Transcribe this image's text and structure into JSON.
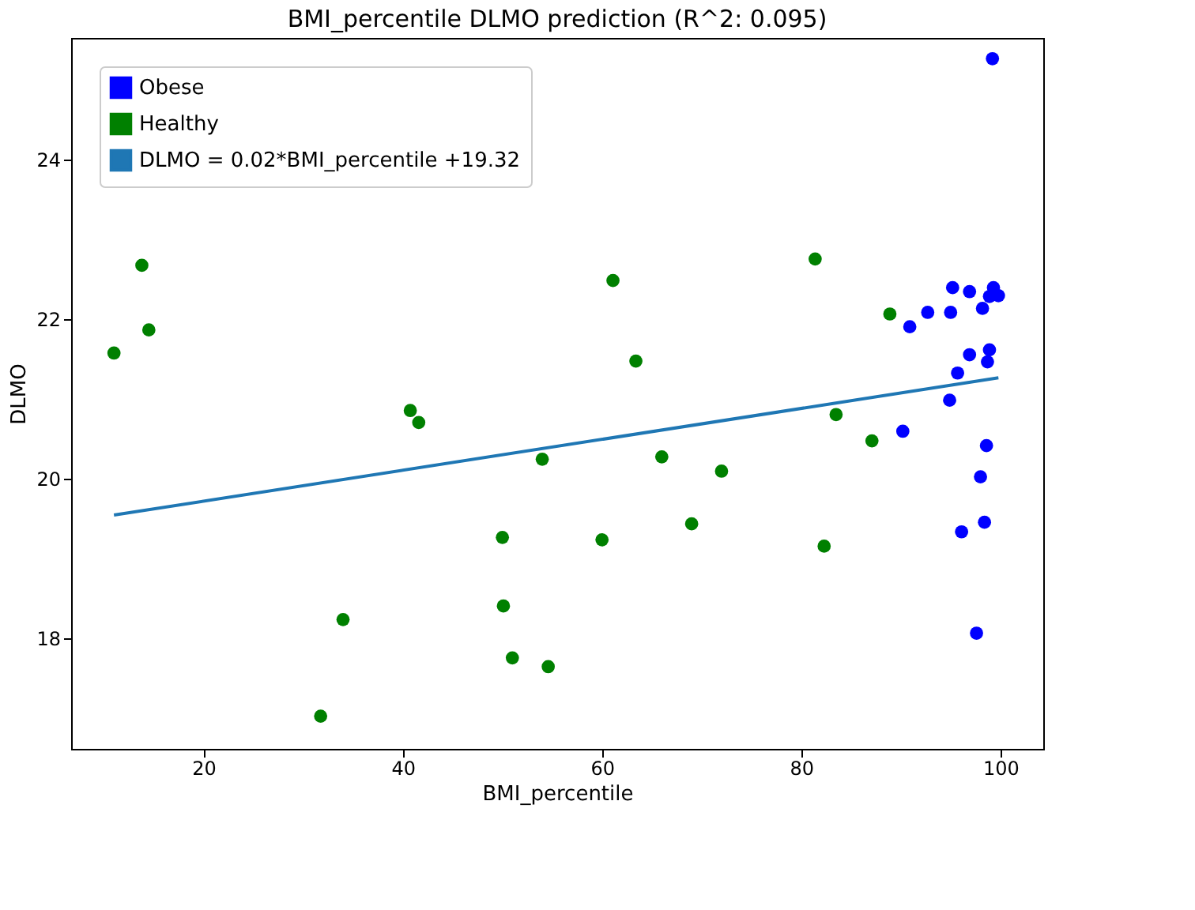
{
  "chart_data": {
    "type": "scatter",
    "title": "BMI_percentile DLMO prediction (R^2: 0.095)",
    "xlabel": "BMI_percentile",
    "ylabel": "DLMO",
    "series": [
      {
        "name": "Obese",
        "marker": "circle",
        "color": "#0000ff",
        "x": [
          99.2,
          90.9,
          92.7,
          95.0,
          95.2,
          96.9,
          98.2,
          99.3,
          99.8,
          98.9,
          98.9,
          98.7,
          96.9,
          95.7,
          94.9,
          90.2,
          98.6,
          98.0,
          98.4,
          96.1,
          97.6
        ],
        "values": [
          25.26,
          21.9,
          22.08,
          22.08,
          22.39,
          22.34,
          22.13,
          22.39,
          22.29,
          22.28,
          21.61,
          21.46,
          21.55,
          21.32,
          20.98,
          20.59,
          20.41,
          20.02,
          19.45,
          19.33,
          18.06
        ]
      },
      {
        "name": "Healthy",
        "marker": "circle",
        "color": "#008000",
        "x": [
          11.0,
          13.8,
          14.5,
          40.75,
          41.6,
          54.0,
          50.0,
          60.0,
          50.1,
          34.0,
          51.0,
          54.6,
          31.75,
          61.1,
          63.4,
          66.0,
          72.0,
          69.0,
          81.4,
          83.5,
          87.1,
          82.3,
          88.9
        ],
        "values": [
          21.57,
          22.67,
          21.86,
          20.85,
          20.7,
          20.24,
          19.26,
          19.23,
          18.4,
          18.23,
          17.75,
          17.64,
          17.02,
          22.48,
          21.47,
          20.27,
          20.09,
          19.43,
          22.75,
          20.8,
          20.47,
          19.15,
          22.06
        ]
      },
      {
        "name": "DLMO = 0.02*BMI_percentile +19.32",
        "type": "line",
        "marker": "none",
        "color": "#1f77b4",
        "x": [
          11.0,
          99.8
        ],
        "values": [
          19.54,
          21.26
        ]
      }
    ],
    "xlim": [
      6.7,
      104.3
    ],
    "ylim": [
      16.61,
      25.52
    ],
    "xticks": [
      20,
      40,
      60,
      80,
      100
    ],
    "yticks": [
      18,
      20,
      22,
      24
    ],
    "grid": false,
    "legend": "top left"
  }
}
